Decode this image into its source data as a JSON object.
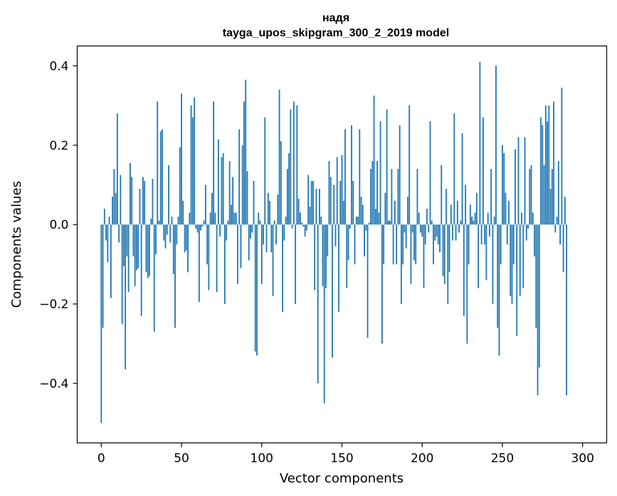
{
  "chart_data": {
    "type": "bar",
    "title": "надя",
    "subtitle": "tayga_upos_skipgram_300_2_2019 model",
    "xlabel": "Vector components",
    "ylabel": "Components values",
    "xlim": [
      -15,
      315
    ],
    "ylim": [
      -0.55,
      0.45
    ],
    "xticks": [
      0,
      50,
      100,
      150,
      200,
      250,
      300
    ],
    "xtick_labels": [
      "0",
      "50",
      "100",
      "150",
      "200",
      "250",
      "300"
    ],
    "yticks": [
      -0.4,
      -0.2,
      0.0,
      0.2,
      0.4
    ],
    "ytick_labels": [
      "−0.4",
      "−0.2",
      "0.0",
      "0.2",
      "0.4"
    ],
    "color": "#1f77b4",
    "values": [
      -0.5,
      -0.26,
      0.04,
      -0.04,
      -0.095,
      0.02,
      -0.185,
      0.07,
      0.14,
      0.08,
      0.28,
      -0.045,
      0.125,
      -0.25,
      -0.105,
      -0.365,
      -0.08,
      -0.17,
      0.155,
      0.12,
      -0.08,
      -0.155,
      -0.115,
      -0.11,
      0.09,
      -0.23,
      0.12,
      0.11,
      -0.12,
      -0.135,
      -0.13,
      0.015,
      0.115,
      -0.27,
      -0.075,
      0.31,
      0.01,
      0.235,
      0.24,
      -0.04,
      -0.06,
      -0.025,
      0.15,
      -0.045,
      0.02,
      -0.125,
      -0.26,
      -0.05,
      0.02,
      0.195,
      0.33,
      0.06,
      -0.07,
      -0.065,
      -0.12,
      0.03,
      0.3,
      0.27,
      0.32,
      -0.01,
      -0.02,
      -0.195,
      -0.015,
      -0.005,
      0.01,
      0.1,
      -0.1,
      -0.165,
      0.03,
      0.08,
      0.31,
      0.03,
      -0.17,
      0.215,
      -0.03,
      0.17,
      0.18,
      -0.2,
      -0.04,
      0.01,
      0.16,
      0.05,
      0.12,
      0.03,
      0.03,
      -0.15,
      0.24,
      -0.11,
      0.2,
      0.31,
      0.365,
      0.135,
      -0.09,
      -0.035,
      -0.02,
      0.11,
      -0.32,
      -0.33,
      0.03,
      0.01,
      -0.15,
      -0.05,
      0.27,
      -0.07,
      0.08,
      0.06,
      -0.07,
      -0.18,
      0.01,
      -0.05,
      0.075,
      0.34,
      0.21,
      -0.22,
      -0.04,
      0.02,
      0.14,
      0.18,
      0.29,
      -0.01,
      0.31,
      -0.2,
      0.3,
      0.065,
      0.03,
      0.005,
      -0.005,
      -0.03,
      -0.015,
      0.125,
      0.045,
      0.11,
      0.11,
      -0.165,
      0.09,
      -0.4,
      0.09,
      0.02,
      -0.155,
      -0.45,
      -0.16,
      -0.08,
      0.16,
      0.12,
      -0.335,
      0.1,
      -0.055,
      0.17,
      -0.22,
      0.11,
      0.175,
      0.06,
      0.24,
      -0.16,
      -0.09,
      -0.01,
      0.25,
      0.11,
      -0.1,
      0.02,
      0.02,
      0.24,
      0.07,
      0.05,
      -0.08,
      -0.015,
      -0.285,
      0.005,
      0.14,
      0.16,
      0.325,
      0.04,
      0.16,
      0.03,
      0.26,
      -0.3,
      -0.1,
      0.08,
      0.29,
      0.01,
      0.01,
      0.14,
      -0.1,
      0.06,
      -0.1,
      0.14,
      0.25,
      -0.2,
      -0.1,
      -0.02,
      -0.06,
      0.07,
      0.3,
      -0.15,
      -0.02,
      -0.09,
      -0.1,
      0.14,
      0.03,
      -0.02,
      -0.03,
      -0.16,
      -0.05,
      0.04,
      -0.02,
      0.26,
      0.01,
      -0.1,
      -0.04,
      -0.03,
      -0.05,
      -0.07,
      0.15,
      -0.13,
      -0.15,
      0.09,
      -0.2,
      -0.12,
      0.05,
      -0.04,
      0.28,
      -0.04,
      0.06,
      -0.02,
      0.01,
      0.23,
      -0.23,
      0.1,
      -0.3,
      -0.1,
      0.05,
      0.02,
      0.01,
      0.03,
      0.08,
      -0.16,
      0.41,
      -0.05,
      0.27,
      -0.05,
      -0.14,
      0.03,
      -0.03,
      0.14,
      -0.2,
      0.02,
      0.4,
      -0.26,
      -0.33,
      -0.1,
      0.2,
      0.18,
      0.08,
      -0.05,
      0.06,
      -0.18,
      -0.2,
      -0.1,
      0.19,
      -0.28,
      0.22,
      -0.18,
      0.03,
      -0.16,
      0.22,
      -0.04,
      -0.01,
      0.14,
      0.15,
      0.03,
      -0.08,
      -0.26,
      -0.43,
      -0.36,
      0.27,
      0.25,
      0.15,
      0.3,
      0.26,
      0.3,
      0.09,
      0.14,
      0.31,
      -0.02,
      0.02,
      0.16,
      -0.05,
      0.345,
      -0.12,
      0.07,
      -0.43
    ]
  }
}
